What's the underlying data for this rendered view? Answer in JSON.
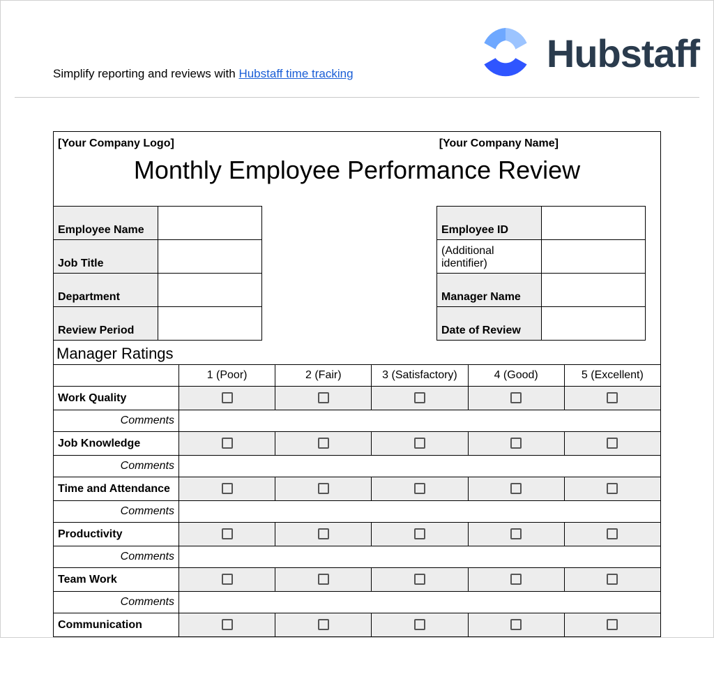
{
  "brand": {
    "name": "Hubstaff",
    "name_color": "#2a3b4d",
    "logo_colors": {
      "top_left": "#6ea8ff",
      "top_right": "#9cc4ff",
      "bottom": "#2f55ff"
    }
  },
  "header": {
    "prefix_text": "Simplify reporting and reviews with ",
    "link_text": "Hubstaff time tracking"
  },
  "form": {
    "company_logo_placeholder": "[Your Company Logo]",
    "company_name_placeholder": "[Your Company Name]",
    "title": "Monthly Employee Performance Review",
    "left_fields": [
      {
        "label": "Employee Name",
        "value": ""
      },
      {
        "label": "Job Title",
        "value": ""
      },
      {
        "label": "Department",
        "value": ""
      },
      {
        "label": "Review Period",
        "value": ""
      }
    ],
    "right_fields": [
      {
        "label": "Employee ID",
        "value": "",
        "plain": false
      },
      {
        "label": "(Additional identifier)",
        "value": "",
        "plain": true
      },
      {
        "label": "Manager Name",
        "value": "",
        "plain": false
      },
      {
        "label": "Date of Review",
        "value": "",
        "plain": false
      }
    ],
    "ratings_section_title": "Manager Ratings",
    "rating_headers": [
      "1 (Poor)",
      "2 (Fair)",
      "3 (Satisfactory)",
      "4 (Good)",
      "5 (Excellent)"
    ],
    "comments_label": "Comments",
    "categories": [
      "Work Quality",
      "Job Knowledge",
      "Time and Attendance",
      "Productivity",
      "Team Work",
      "Communication"
    ]
  },
  "colors": {
    "shaded_cell": "#ededed",
    "border": "#000000",
    "link": "#1a5ed6",
    "separator": "#c8c8c8"
  }
}
